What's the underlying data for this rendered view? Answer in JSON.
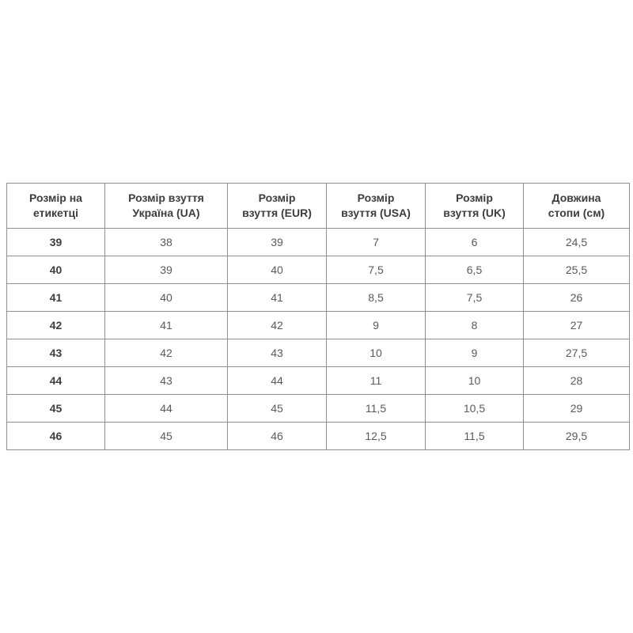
{
  "page": {
    "background": "#ffffff"
  },
  "table": {
    "headers": [
      {
        "line1": "Розмір на",
        "line2": "етикетці"
      },
      {
        "line1": "Розмір взуття",
        "line2": "Україна (UA)"
      },
      {
        "line1": "Розмір",
        "line2": "взуття (EUR)"
      },
      {
        "line1": "Розмір",
        "line2": "взуття (USA)"
      },
      {
        "line1": "Розмір",
        "line2": "взуття (UK)"
      },
      {
        "line1": "Довжина",
        "line2": "стопи (см)"
      }
    ],
    "rows": [
      [
        "39",
        "38",
        "39",
        "7",
        "6",
        "24,5"
      ],
      [
        "40",
        "39",
        "40",
        "7,5",
        "6,5",
        "25,5"
      ],
      [
        "41",
        "40",
        "41",
        "8,5",
        "7,5",
        "26"
      ],
      [
        "42",
        "41",
        "42",
        "9",
        "8",
        "27"
      ],
      [
        "43",
        "42",
        "43",
        "10",
        "9",
        "27,5"
      ],
      [
        "44",
        "43",
        "44",
        "11",
        "10",
        "28"
      ],
      [
        "45",
        "44",
        "45",
        "11,5",
        "10,5",
        "29"
      ],
      [
        "46",
        "45",
        "46",
        "12,5",
        "11,5",
        "29,5"
      ]
    ],
    "colors": {
      "header_text": "#3d3d3d",
      "cell_text": "#595959",
      "first_column_text": "#3d3d3d",
      "border": "#8f8f8f",
      "cell_background": "#ffffff"
    }
  }
}
